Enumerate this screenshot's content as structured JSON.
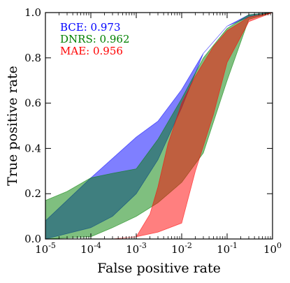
{
  "chart_data": {
    "type": "area",
    "xlabel": "False positive rate",
    "ylabel": "True positive rate",
    "xscale": "log",
    "xlim": [
      1e-05,
      1
    ],
    "ylim": [
      0,
      1
    ],
    "x_ticks": [
      {
        "value": 1e-05,
        "base": "10",
        "exp": "-5"
      },
      {
        "value": 0.0001,
        "base": "10",
        "exp": "-4"
      },
      {
        "value": 0.001,
        "base": "10",
        "exp": "-3"
      },
      {
        "value": 0.01,
        "base": "10",
        "exp": "-2"
      },
      {
        "value": 0.1,
        "base": "10",
        "exp": "-1"
      },
      {
        "value": 1,
        "base": "10",
        "exp": "0"
      }
    ],
    "y_ticks": [
      {
        "value": 0.0,
        "label": "0.0"
      },
      {
        "value": 0.2,
        "label": "0.2"
      },
      {
        "value": 0.4,
        "label": "0.4"
      },
      {
        "value": 0.6,
        "label": "0.6"
      },
      {
        "value": 0.8,
        "label": "0.8"
      },
      {
        "value": 1.0,
        "label": "1.0"
      }
    ],
    "grid": false,
    "legend_position": "top-left",
    "series": [
      {
        "name": "BCE",
        "legend_label": "BCE: 0.973",
        "color": "#0000ff",
        "upper": [
          [
            1e-05,
            0.08
          ],
          [
            0.0001,
            0.27
          ],
          [
            0.001,
            0.45
          ],
          [
            0.003,
            0.52
          ],
          [
            0.01,
            0.66
          ],
          [
            0.03,
            0.82
          ],
          [
            0.1,
            0.94
          ],
          [
            0.3,
            0.99
          ],
          [
            1,
            1.0
          ]
        ],
        "lower": [
          [
            1e-05,
            0.0
          ],
          [
            0.0001,
            0.05
          ],
          [
            0.0003,
            0.1
          ],
          [
            0.001,
            0.2
          ],
          [
            0.003,
            0.35
          ],
          [
            0.01,
            0.58
          ],
          [
            0.03,
            0.82
          ],
          [
            0.1,
            0.94
          ],
          [
            0.3,
            0.98
          ],
          [
            1,
            1.0
          ]
        ]
      },
      {
        "name": "DNRS",
        "legend_label": "DNRS: 0.962",
        "color": "#008000",
        "upper": [
          [
            1e-05,
            0.17
          ],
          [
            3e-05,
            0.21
          ],
          [
            0.0001,
            0.27
          ],
          [
            0.0003,
            0.29
          ],
          [
            0.001,
            0.31
          ],
          [
            0.003,
            0.44
          ],
          [
            0.01,
            0.62
          ],
          [
            0.03,
            0.8
          ],
          [
            0.1,
            0.93
          ],
          [
            0.3,
            0.99
          ],
          [
            1,
            1.0
          ]
        ],
        "lower": [
          [
            1e-05,
            0.0
          ],
          [
            0.0001,
            0.01
          ],
          [
            0.0003,
            0.05
          ],
          [
            0.001,
            0.1
          ],
          [
            0.003,
            0.16
          ],
          [
            0.01,
            0.25
          ],
          [
            0.03,
            0.38
          ],
          [
            0.1,
            0.7
          ],
          [
            0.3,
            0.97
          ],
          [
            1,
            1.0
          ]
        ]
      },
      {
        "name": "MAE",
        "legend_label": "MAE: 0.956",
        "color": "#ff0000",
        "upper": [
          [
            0.001,
            0.01
          ],
          [
            0.002,
            0.11
          ],
          [
            0.003,
            0.23
          ],
          [
            0.005,
            0.42
          ],
          [
            0.01,
            0.6
          ],
          [
            0.02,
            0.72
          ],
          [
            0.05,
            0.85
          ],
          [
            0.1,
            0.92
          ],
          [
            0.3,
            0.98
          ],
          [
            1,
            1.0
          ]
        ],
        "lower": [
          [
            0.0003,
            0.0
          ],
          [
            0.001,
            0.01
          ],
          [
            0.003,
            0.03
          ],
          [
            0.01,
            0.07
          ],
          [
            0.02,
            0.3
          ],
          [
            0.05,
            0.55
          ],
          [
            0.1,
            0.78
          ],
          [
            0.3,
            0.96
          ],
          [
            1,
            1.0
          ]
        ]
      }
    ]
  }
}
